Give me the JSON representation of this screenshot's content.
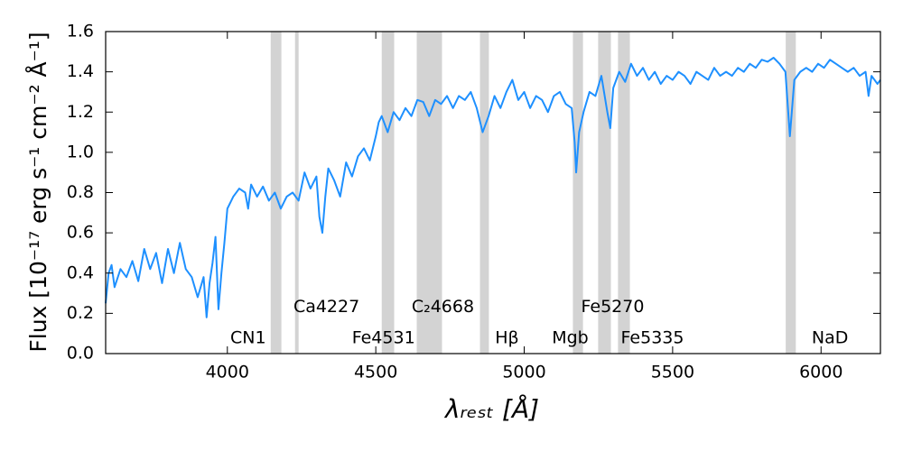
{
  "chart_data": {
    "type": "line",
    "xlabel": "λᵣₑₛₜ [Å]",
    "ylabel": "Flux [10⁻¹⁷ erg s⁻¹ cm⁻² Å⁻¹]",
    "x": [
      3590,
      3600,
      3610,
      3620,
      3640,
      3660,
      3680,
      3700,
      3720,
      3740,
      3760,
      3780,
      3800,
      3820,
      3840,
      3860,
      3880,
      3900,
      3920,
      3930,
      3940,
      3950,
      3960,
      3970,
      3980,
      3990,
      4000,
      4020,
      4040,
      4060,
      4070,
      4080,
      4100,
      4120,
      4140,
      4160,
      4180,
      4200,
      4220,
      4240,
      4260,
      4280,
      4300,
      4310,
      4320,
      4330,
      4340,
      4360,
      4380,
      4400,
      4420,
      4440,
      4460,
      4480,
      4500,
      4510,
      4520,
      4540,
      4560,
      4580,
      4600,
      4620,
      4640,
      4660,
      4680,
      4700,
      4720,
      4740,
      4760,
      4780,
      4800,
      4820,
      4840,
      4860,
      4880,
      4900,
      4920,
      4940,
      4960,
      4980,
      5000,
      5020,
      5040,
      5060,
      5080,
      5100,
      5120,
      5140,
      5160,
      5170,
      5175,
      5185,
      5200,
      5220,
      5240,
      5260,
      5280,
      5290,
      5300,
      5320,
      5340,
      5360,
      5380,
      5400,
      5420,
      5440,
      5460,
      5480,
      5500,
      5520,
      5540,
      5560,
      5580,
      5600,
      5620,
      5640,
      5660,
      5680,
      5700,
      5720,
      5740,
      5760,
      5780,
      5800,
      5820,
      5840,
      5860,
      5880,
      5895,
      5910,
      5930,
      5950,
      5970,
      5990,
      6010,
      6030,
      6050,
      6070,
      6090,
      6110,
      6130,
      6150,
      6160,
      6170,
      6190,
      6200
    ],
    "series": [
      {
        "color": "#1e90ff",
        "values": [
          0.25,
          0.4,
          0.44,
          0.33,
          0.42,
          0.38,
          0.46,
          0.36,
          0.52,
          0.42,
          0.5,
          0.35,
          0.52,
          0.4,
          0.55,
          0.42,
          0.38,
          0.28,
          0.38,
          0.18,
          0.35,
          0.45,
          0.58,
          0.22,
          0.4,
          0.55,
          0.72,
          0.78,
          0.82,
          0.8,
          0.72,
          0.84,
          0.78,
          0.83,
          0.76,
          0.8,
          0.72,
          0.78,
          0.8,
          0.76,
          0.9,
          0.82,
          0.88,
          0.68,
          0.6,
          0.78,
          0.92,
          0.86,
          0.78,
          0.95,
          0.88,
          0.98,
          1.02,
          0.96,
          1.08,
          1.15,
          1.18,
          1.1,
          1.2,
          1.16,
          1.22,
          1.18,
          1.26,
          1.25,
          1.18,
          1.26,
          1.24,
          1.28,
          1.22,
          1.28,
          1.26,
          1.3,
          1.22,
          1.1,
          1.18,
          1.28,
          1.22,
          1.3,
          1.36,
          1.26,
          1.3,
          1.22,
          1.28,
          1.26,
          1.2,
          1.28,
          1.3,
          1.24,
          1.22,
          1.05,
          0.9,
          1.1,
          1.2,
          1.3,
          1.28,
          1.38,
          1.2,
          1.12,
          1.32,
          1.4,
          1.35,
          1.44,
          1.38,
          1.42,
          1.36,
          1.4,
          1.34,
          1.38,
          1.36,
          1.4,
          1.38,
          1.34,
          1.4,
          1.38,
          1.36,
          1.42,
          1.38,
          1.4,
          1.38,
          1.42,
          1.4,
          1.44,
          1.42,
          1.46,
          1.45,
          1.47,
          1.44,
          1.4,
          1.08,
          1.36,
          1.4,
          1.42,
          1.4,
          1.44,
          1.42,
          1.46,
          1.44,
          1.42,
          1.4,
          1.42,
          1.38,
          1.4,
          1.28,
          1.38,
          1.34,
          1.36
        ]
      }
    ],
    "bands": [
      [
        4146,
        4182
      ],
      [
        4228,
        4240
      ],
      [
        4520,
        4562
      ],
      [
        4638,
        4723
      ],
      [
        4851,
        4881
      ],
      [
        5164,
        5198
      ],
      [
        5249,
        5292
      ],
      [
        5316,
        5356
      ],
      [
        5881,
        5915
      ]
    ],
    "band_color": "#d3d3d3",
    "annotations": [
      {
        "text": "CN1",
        "x": 4070,
        "y": 0.076
      },
      {
        "text": "Ca4227",
        "x": 4334,
        "y": 0.23
      },
      {
        "text": "Fe4531",
        "x": 4526,
        "y": 0.076
      },
      {
        "text": "C₂4668",
        "x": 4726,
        "y": 0.23
      },
      {
        "text": "Hβ",
        "x": 4942,
        "y": 0.076
      },
      {
        "text": "Mgb",
        "x": 5155,
        "y": 0.076
      },
      {
        "text": "Fe5270",
        "x": 5298,
        "y": 0.23
      },
      {
        "text": "Fe5335",
        "x": 5432,
        "y": 0.076
      },
      {
        "text": "NaD",
        "x": 6030,
        "y": 0.076
      }
    ],
    "xlim": [
      3590,
      6200
    ],
    "xticks": [
      4000,
      4500,
      5000,
      5500,
      6000
    ],
    "ylim": [
      0,
      1.6
    ],
    "yticks": [
      {
        "value": 0,
        "label": "0.0"
      },
      0.2,
      0.4,
      0.6,
      0.8,
      {
        "value": 1,
        "label": "1.0"
      },
      1.2,
      1.4,
      1.6
    ]
  }
}
